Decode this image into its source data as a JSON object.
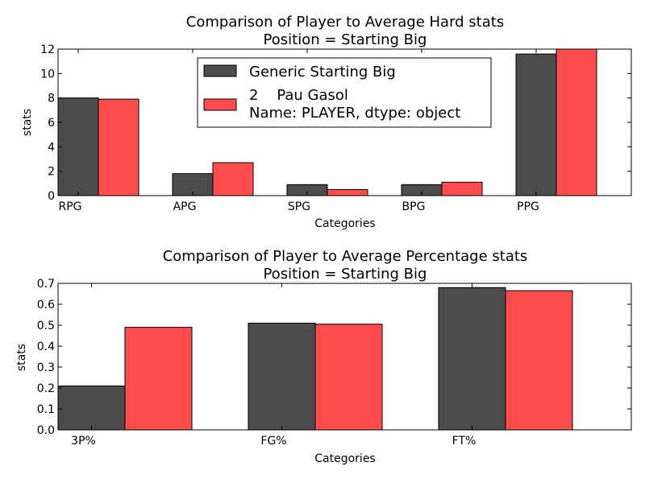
{
  "chart_data": [
    {
      "type": "bar",
      "title": "Comparison of Player to Average Hard stats",
      "subtitle": "Position = Starting Big",
      "xlabel": "Categories",
      "ylabel": "stats",
      "categories": [
        "RPG",
        "APG",
        "SPG",
        "BPG",
        "PPG"
      ],
      "ylim": [
        0,
        12
      ],
      "yticks": [
        0,
        2,
        4,
        6,
        8,
        10,
        12
      ],
      "series": [
        {
          "name": "Generic Starting Big",
          "color": "#4c4c4c",
          "values": [
            8.0,
            1.8,
            0.9,
            0.9,
            11.6
          ]
        },
        {
          "name": "2    Pau Gasol",
          "name_line2": "Name: PLAYER, dtype: object",
          "color": "#ff4c4c",
          "values": [
            7.9,
            2.7,
            0.5,
            1.1,
            12.0
          ]
        }
      ],
      "legend": "top-center",
      "grid": false
    },
    {
      "type": "bar",
      "title": "Comparison of Player to Average Percentage stats",
      "subtitle": "Position = Starting Big",
      "xlabel": "Categories",
      "ylabel": "stats",
      "categories": [
        "3P%",
        "FG%",
        "FT%"
      ],
      "ylim": [
        0,
        0.7
      ],
      "yticks": [
        "0.0",
        "0.1",
        "0.2",
        "0.3",
        "0.4",
        "0.5",
        "0.6",
        "0.7"
      ],
      "series": [
        {
          "name": "Generic Starting Big",
          "color": "#4c4c4c",
          "values": [
            0.21,
            0.51,
            0.68
          ]
        },
        {
          "name": "Pau Gasol",
          "color": "#ff4c4c",
          "values": [
            0.49,
            0.505,
            0.665
          ]
        }
      ],
      "grid": false
    }
  ]
}
